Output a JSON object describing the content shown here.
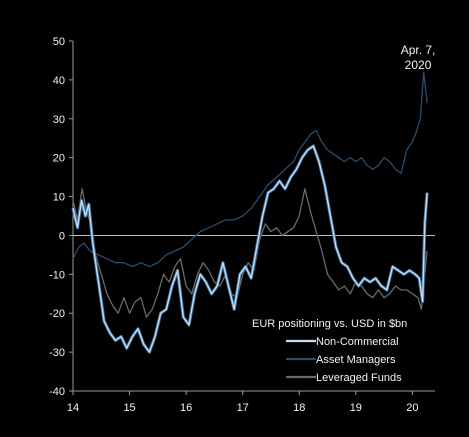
{
  "chart_data": {
    "type": "line",
    "title": "",
    "xlabel": "",
    "ylabel": "",
    "xlim": [
      2014,
      2020.4
    ],
    "ylim": [
      -40,
      50
    ],
    "grid": false,
    "x_ticks": [
      2014,
      2015,
      2016,
      2017,
      2018,
      2019,
      2020
    ],
    "x_tick_labels": [
      "14",
      "15",
      "16",
      "17",
      "18",
      "19",
      "20"
    ],
    "y_ticks": [
      -40,
      -30,
      -20,
      -10,
      0,
      10,
      20,
      30,
      40,
      50
    ],
    "y_tick_labels": [
      "-40",
      "-30",
      "-20",
      "-10",
      "0",
      "10",
      "20",
      "30",
      "40",
      "50"
    ],
    "legend_title": "EUR positioning vs. USD in $bn",
    "legend_position": "bottom-right",
    "annotation": {
      "lines": [
        "Apr. 7,",
        "2020"
      ],
      "x": 2020.1,
      "y": 43
    },
    "colors": {
      "background": "#000000",
      "axis": "#9a9a9a",
      "text": "#f2f2f2",
      "non_commercial": "#c4dcf2",
      "asset_managers": "#2a4c6e",
      "leveraged_funds": "#6a6a6a"
    },
    "series": [
      {
        "name": "Non-Commercial",
        "key": "non_commercial",
        "x": [
          2014.0,
          2014.08,
          2014.15,
          2014.22,
          2014.28,
          2014.35,
          2014.45,
          2014.55,
          2014.65,
          2014.75,
          2014.85,
          2014.95,
          2015.05,
          2015.15,
          2015.25,
          2015.35,
          2015.45,
          2015.55,
          2015.65,
          2015.75,
          2015.85,
          2015.95,
          2016.05,
          2016.15,
          2016.25,
          2016.35,
          2016.45,
          2016.55,
          2016.65,
          2016.75,
          2016.85,
          2016.95,
          2017.05,
          2017.15,
          2017.25,
          2017.35,
          2017.45,
          2017.55,
          2017.65,
          2017.75,
          2017.85,
          2017.95,
          2018.05,
          2018.15,
          2018.25,
          2018.35,
          2018.45,
          2018.55,
          2018.65,
          2018.75,
          2018.85,
          2018.95,
          2019.05,
          2019.15,
          2019.25,
          2019.35,
          2019.45,
          2019.55,
          2019.65,
          2019.75,
          2019.85,
          2019.95,
          2020.05,
          2020.12,
          2020.18,
          2020.22,
          2020.26
        ],
        "values": [
          7,
          2,
          9,
          5,
          8,
          -2,
          -12,
          -22,
          -25,
          -27,
          -26,
          -29,
          -26,
          -24,
          -28,
          -30,
          -26,
          -20,
          -19,
          -13,
          -9,
          -21,
          -23,
          -15,
          -10,
          -12,
          -15,
          -13,
          -7,
          -13,
          -19,
          -10,
          -8,
          -11,
          -3,
          5,
          11,
          12,
          14,
          12,
          15,
          17,
          20,
          22,
          23,
          19,
          13,
          5,
          -3,
          -7,
          -8,
          -11,
          -13,
          -11,
          -12,
          -11,
          -13,
          -14,
          -8,
          -9,
          -10,
          -9,
          -10,
          -11,
          -17,
          3,
          11
        ]
      },
      {
        "name": "Asset Managers",
        "key": "asset_managers",
        "x": [
          2014.0,
          2014.1,
          2014.2,
          2014.3,
          2014.45,
          2014.6,
          2014.75,
          2014.9,
          2015.05,
          2015.2,
          2015.35,
          2015.5,
          2015.65,
          2015.8,
          2015.95,
          2016.1,
          2016.25,
          2016.4,
          2016.55,
          2016.7,
          2016.85,
          2017.0,
          2017.15,
          2017.3,
          2017.45,
          2017.6,
          2017.75,
          2017.9,
          2018.0,
          2018.1,
          2018.2,
          2018.3,
          2018.4,
          2018.5,
          2018.6,
          2018.7,
          2018.8,
          2018.9,
          2019.0,
          2019.1,
          2019.2,
          2019.3,
          2019.4,
          2019.5,
          2019.6,
          2019.7,
          2019.8,
          2019.9,
          2020.0,
          2020.08,
          2020.14,
          2020.2,
          2020.26
        ],
        "values": [
          -6,
          -3,
          -2,
          -4,
          -5,
          -6,
          -7,
          -7,
          -8,
          -7,
          -8,
          -7,
          -5,
          -4,
          -3,
          -1,
          1,
          2,
          3,
          4,
          4,
          5,
          7,
          10,
          13,
          15,
          17,
          19,
          22,
          24,
          26,
          27,
          24,
          22,
          21,
          20,
          19,
          20,
          19,
          20,
          18,
          17,
          18,
          20,
          19,
          17,
          16,
          22,
          24,
          27,
          30,
          42,
          34
        ]
      },
      {
        "name": "Leveraged Funds",
        "key": "leveraged_funds",
        "x": [
          2014.0,
          2014.08,
          2014.16,
          2014.24,
          2014.32,
          2014.4,
          2014.5,
          2014.6,
          2014.7,
          2014.8,
          2014.9,
          2015.0,
          2015.1,
          2015.2,
          2015.3,
          2015.4,
          2015.5,
          2015.6,
          2015.7,
          2015.8,
          2015.9,
          2016.0,
          2016.1,
          2016.2,
          2016.3,
          2016.4,
          2016.5,
          2016.6,
          2016.7,
          2016.8,
          2016.9,
          2017.0,
          2017.1,
          2017.2,
          2017.3,
          2017.4,
          2017.5,
          2017.6,
          2017.7,
          2017.8,
          2017.9,
          2018.0,
          2018.1,
          2018.2,
          2018.3,
          2018.4,
          2018.5,
          2018.6,
          2018.7,
          2018.8,
          2018.9,
          2019.0,
          2019.1,
          2019.2,
          2019.3,
          2019.4,
          2019.5,
          2019.6,
          2019.7,
          2019.8,
          2019.9,
          2020.0,
          2020.1,
          2020.16,
          2020.22,
          2020.26
        ],
        "values": [
          9,
          4,
          12,
          6,
          3,
          -5,
          -10,
          -15,
          -18,
          -20,
          -16,
          -20,
          -17,
          -16,
          -21,
          -19,
          -15,
          -10,
          -12,
          -8,
          -6,
          -13,
          -15,
          -10,
          -7,
          -9,
          -12,
          -13,
          -10,
          -15,
          -16,
          -10,
          -7,
          -9,
          -1,
          3,
          1,
          2,
          0,
          1,
          2,
          5,
          12,
          6,
          1,
          -4,
          -10,
          -12,
          -14,
          -13,
          -15,
          -12,
          -13,
          -15,
          -16,
          -14,
          -16,
          -15,
          -13,
          -14,
          -14,
          -15,
          -16,
          -19,
          -10,
          -4
        ]
      }
    ]
  }
}
